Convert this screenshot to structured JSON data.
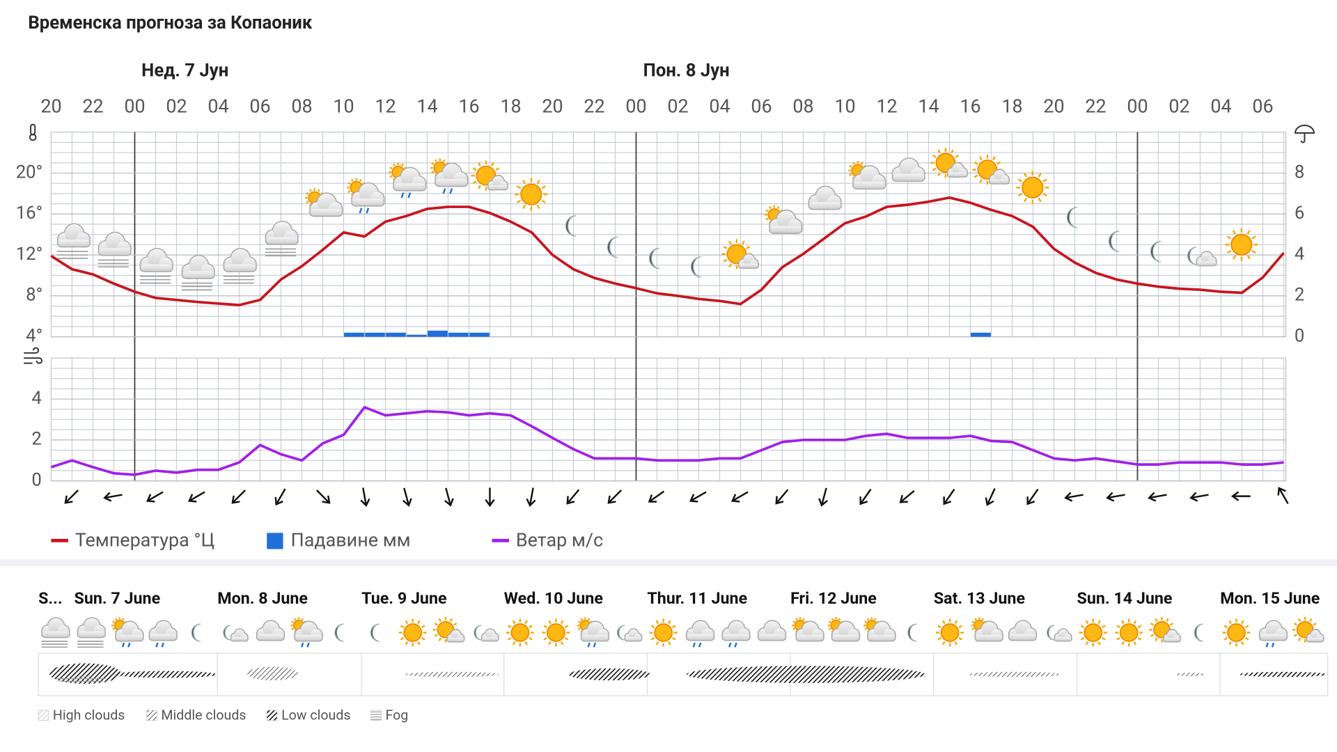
{
  "chart_data": [
    {
      "type": "line",
      "title": "Временска прогноза за Копаоник",
      "day_labels": [
        "Нед. 7 Јун",
        "Пон. 8 Јун"
      ],
      "categories": [
        "20",
        null,
        "22",
        null,
        "00",
        null,
        "02",
        null,
        "04",
        null,
        "06",
        null,
        "08",
        null,
        "10",
        null,
        "12",
        null,
        "14",
        null,
        "16",
        null,
        "18",
        null,
        "20",
        null,
        "22",
        null,
        "00",
        null,
        "02",
        null,
        "04",
        null,
        "06",
        null,
        "08",
        null,
        "10",
        null,
        "12",
        null,
        "14",
        null,
        "16",
        null,
        "18",
        null,
        "20",
        null,
        "22",
        null,
        "00",
        null,
        "02",
        null,
        "04",
        null,
        "06",
        null
      ],
      "ylim": [
        4,
        24
      ],
      "yticks": [
        {
          "value": 4,
          "label": "4°"
        },
        {
          "value": 8,
          "label": "8°"
        },
        {
          "value": 12,
          "label": "12°"
        },
        {
          "value": 16,
          "label": "16°"
        },
        {
          "value": 20,
          "label": "20°"
        }
      ],
      "y2lim": [
        0,
        10
      ],
      "y2ticks": [
        0,
        2,
        4,
        6,
        8
      ],
      "grid": true,
      "series": [
        {
          "name": "Температура °Ц",
          "color": "#c8141e",
          "values": [
            11.9,
            10.6,
            10.1,
            9.2,
            8.4,
            7.8,
            7.6,
            7.4,
            7.25,
            7.1,
            7.6,
            9.6,
            10.9,
            12.5,
            14.2,
            13.8,
            15.25,
            15.8,
            16.5,
            16.7,
            16.7,
            16.1,
            15.25,
            14.2,
            12.0,
            10.6,
            9.75,
            9.2,
            8.75,
            8.25,
            8.0,
            7.7,
            7.5,
            7.2,
            8.6,
            10.8,
            12.1,
            13.6,
            15.1,
            15.75,
            16.7,
            16.9,
            17.2,
            17.6,
            17.1,
            16.4,
            15.8,
            14.75,
            12.6,
            11.25,
            10.25,
            9.6,
            9.2,
            8.9,
            8.7,
            8.6,
            8.4,
            8.3,
            9.8,
            12.2
          ]
        },
        {
          "name": "Падавине мм",
          "type": "bar",
          "axis": "y2",
          "color": "#1e6fd9",
          "values": [
            0,
            0,
            0,
            0,
            0,
            0,
            0,
            0,
            0,
            0,
            0,
            0,
            0,
            0,
            0.2,
            0.2,
            0.2,
            0.1,
            0.3,
            0.2,
            0.2,
            0,
            0,
            0,
            0,
            0,
            0,
            0,
            0,
            0,
            0,
            0,
            0,
            0,
            0,
            0,
            0,
            0,
            0,
            0,
            0,
            0,
            0,
            0,
            0.2,
            0,
            0,
            0,
            0,
            0,
            0,
            0,
            0,
            0,
            0,
            0,
            0,
            0,
            0,
            0
          ]
        }
      ]
    },
    {
      "type": "line",
      "ylim": [
        0,
        6
      ],
      "yticks": [
        0,
        2,
        4
      ],
      "grid": true,
      "series": [
        {
          "name": "Ветар м/с",
          "color": "#a020e8",
          "values": [
            0.67,
            1.0,
            0.67,
            0.37,
            0.3,
            0.5,
            0.4,
            0.54,
            0.54,
            0.9,
            1.75,
            1.3,
            1.0,
            1.83,
            2.25,
            3.6,
            3.2,
            3.3,
            3.4,
            3.35,
            3.2,
            3.3,
            3.2,
            2.67,
            2.1,
            1.55,
            1.1,
            1.1,
            1.1,
            1.0,
            1.0,
            1.0,
            1.1,
            1.1,
            1.5,
            1.9,
            2.0,
            2.0,
            2.0,
            2.2,
            2.3,
            2.1,
            2.1,
            2.1,
            2.2,
            1.95,
            1.9,
            1.5,
            1.1,
            1.0,
            1.1,
            0.95,
            0.8,
            0.8,
            0.9,
            0.9,
            0.9,
            0.8,
            0.8,
            0.9
          ]
        }
      ],
      "directions": [
        225,
        260,
        240,
        240,
        225,
        210,
        135,
        170,
        165,
        165,
        180,
        190,
        220,
        225,
        235,
        240,
        240,
        220,
        195,
        215,
        230,
        215,
        205,
        215,
        260,
        260,
        260,
        260,
        270,
        330
      ]
    }
  ],
  "forecast_strip": {
    "days": [
      "S...",
      "Sun. 7 June",
      "Mon. 8 June",
      "Tue. 9 June",
      "Wed. 10 June",
      "Thur. 11 June",
      "Fri. 12 June",
      "Sat. 13 June",
      "Sun. 14 June",
      "Mon. 15 June"
    ],
    "legend": [
      "High clouds",
      "Middle clouds",
      "Low clouds",
      "Fog"
    ]
  }
}
